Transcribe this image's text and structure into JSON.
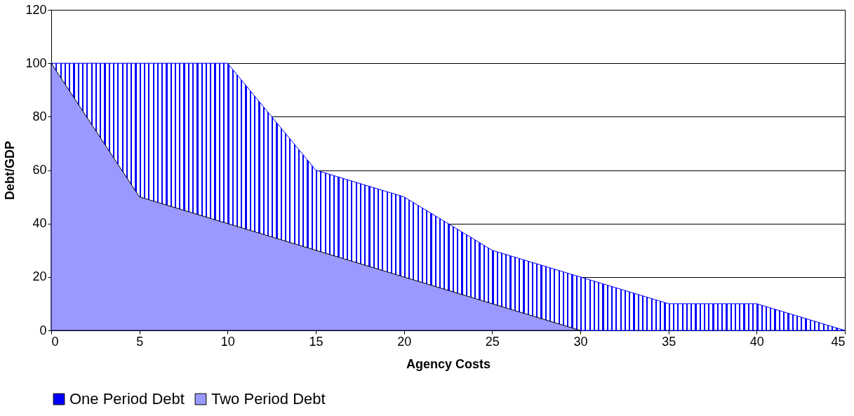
{
  "chart_data": {
    "type": "area",
    "xlabel": "Agency Costs",
    "ylabel": "Debt/GDP",
    "x": [
      0,
      5,
      10,
      15,
      20,
      25,
      30,
      35,
      40,
      45
    ],
    "series": [
      {
        "name": "One Period Debt",
        "color": "#0000ff",
        "values": [
          100,
          100,
          100,
          60,
          50,
          30,
          20,
          10,
          10,
          0
        ]
      },
      {
        "name": "Two Period Debt",
        "color": "#9999ff",
        "values": [
          100,
          50,
          40,
          30,
          20,
          10,
          0,
          null,
          null,
          null
        ]
      }
    ],
    "xlim": [
      0,
      45
    ],
    "xticks": [
      0,
      5,
      10,
      15,
      20,
      25,
      30,
      35,
      40,
      45
    ],
    "ylim": [
      0,
      120
    ],
    "yticks": [
      0,
      20,
      40,
      60,
      80,
      100,
      120
    ],
    "grid": "y",
    "legend": "bottom"
  }
}
